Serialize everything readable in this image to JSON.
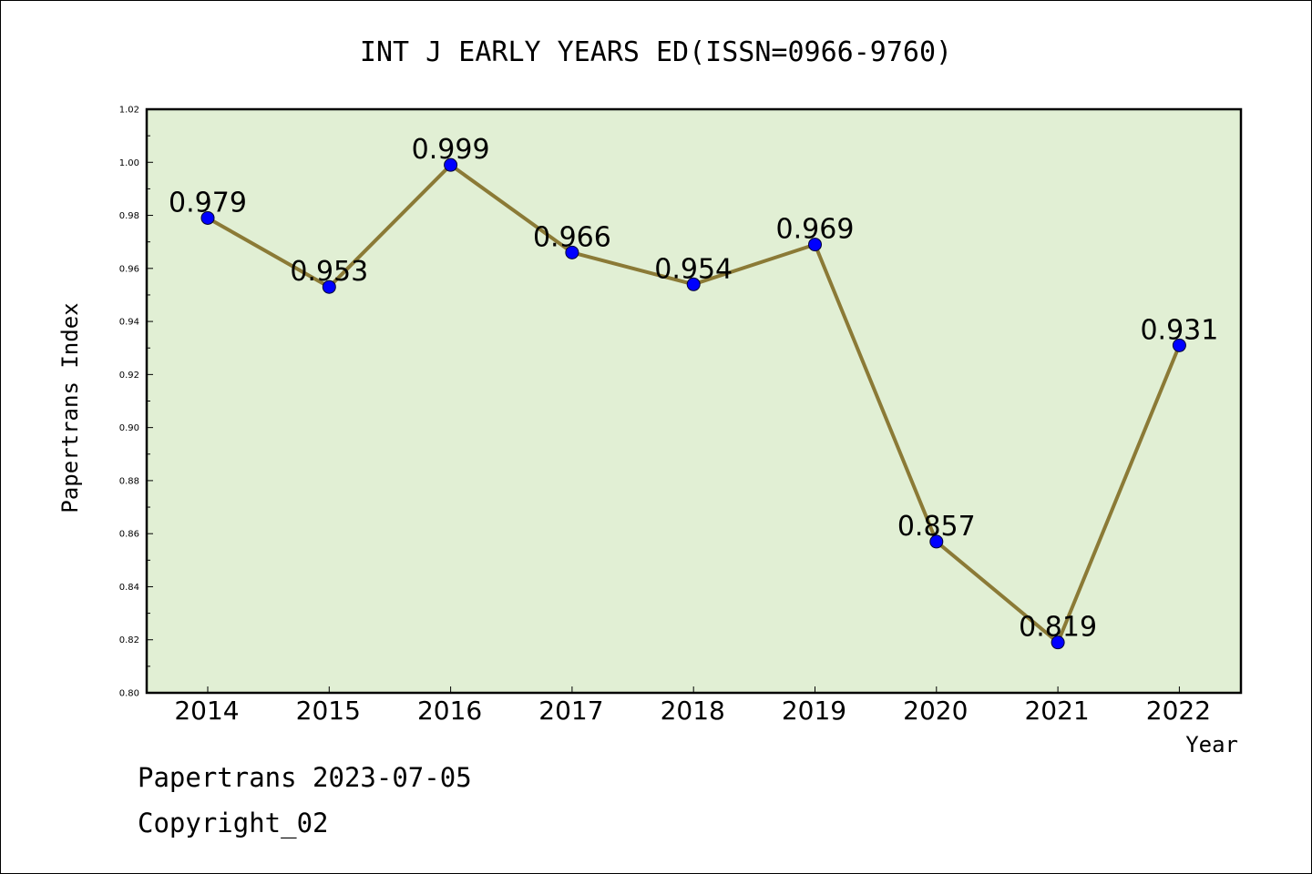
{
  "chart_data": {
    "type": "line",
    "title": "INT J EARLY YEARS ED(ISSN=0966-9760)",
    "xlabel": "Year",
    "ylabel": "Papertrans Index",
    "categories": [
      "2014",
      "2015",
      "2016",
      "2017",
      "2018",
      "2019",
      "2020",
      "2021",
      "2022"
    ],
    "series": [
      {
        "values": [
          0.979,
          0.953,
          0.999,
          0.966,
          0.954,
          0.969,
          0.857,
          0.819,
          0.931
        ]
      }
    ],
    "data_labels": [
      "0.979",
      "0.953",
      "0.999",
      "0.966",
      "0.954",
      "0.969",
      "0.857",
      "0.819",
      "0.931"
    ],
    "ylim": [
      0.8,
      1.02
    ],
    "yticks": [
      "0.80",
      "0.82",
      "0.84",
      "0.86",
      "0.88",
      "0.90",
      "0.92",
      "0.94",
      "0.96",
      "0.98",
      "1.00",
      "1.02"
    ],
    "grid": false,
    "colors": {
      "plot_background": "#e1efd4",
      "line": "#8b7a36",
      "marker": "#0000ff"
    }
  },
  "footer": {
    "line1": "Papertrans 2023-07-05",
    "line2": "Copyright_02"
  }
}
